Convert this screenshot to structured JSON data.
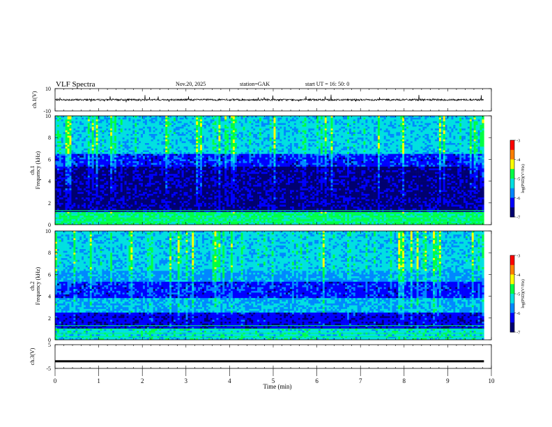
{
  "header": {
    "title": "VLF Spectra",
    "date": "Nov.20, 2025",
    "station": "station=GAK",
    "start_ut": "start UT = 16: 50: 0"
  },
  "colors": {
    "colormap": [
      "#000070",
      "#0000ff",
      "#0088ff",
      "#00e0e0",
      "#00ff44",
      "#ffff00",
      "#ff7f00",
      "#ff0000",
      "#ffffff"
    ],
    "trace": "#000000",
    "axis": "#000000"
  },
  "chart_data": [
    {
      "type": "line",
      "name": "ch1_waveform",
      "ylabel": "ch.1(V)",
      "ylim": [
        -10,
        10
      ],
      "yticks": [
        "10",
        "-10"
      ],
      "baseline": 0,
      "note_visible": "waveform trace centered near 0 V with small spikes"
    },
    {
      "type": "heatmap",
      "name": "ch1_spectrogram",
      "ylabel": "ch.1 Frequency (kHz)",
      "ylim": [
        0,
        10
      ],
      "yticks": [
        "0",
        "2",
        "4",
        "6",
        "8",
        "10"
      ],
      "colorbar": {
        "label": "log(PSD)(V²/Hz)",
        "range": [
          -7,
          -3
        ],
        "ticks": [
          "-3",
          "-4",
          "-5",
          "-6",
          "-7"
        ]
      }
    },
    {
      "type": "heatmap",
      "name": "ch2_spectrogram",
      "ylabel": "ch.2 Frequency (kHz)",
      "ylim": [
        0,
        10
      ],
      "yticks": [
        "0",
        "2",
        "4",
        "6",
        "8",
        "10"
      ],
      "colorbar": {
        "label": "log(PSD)(V²/Hz)",
        "range": [
          -7,
          -3
        ],
        "ticks": [
          "-3",
          "-4",
          "-5",
          "-6",
          "-7"
        ]
      }
    },
    {
      "type": "line",
      "name": "ch3_waveform",
      "ylabel": "ch.3(V)",
      "ylim": [
        -5,
        5
      ],
      "yticks": [
        "5",
        "-5"
      ],
      "baseline": -2
    }
  ],
  "xaxis": {
    "label": "Time (min)",
    "range": [
      0,
      10
    ],
    "ticks": [
      "0",
      "1",
      "2",
      "3",
      "4",
      "5",
      "6",
      "7",
      "8",
      "9",
      "10"
    ],
    "data_end": 9.83
  }
}
